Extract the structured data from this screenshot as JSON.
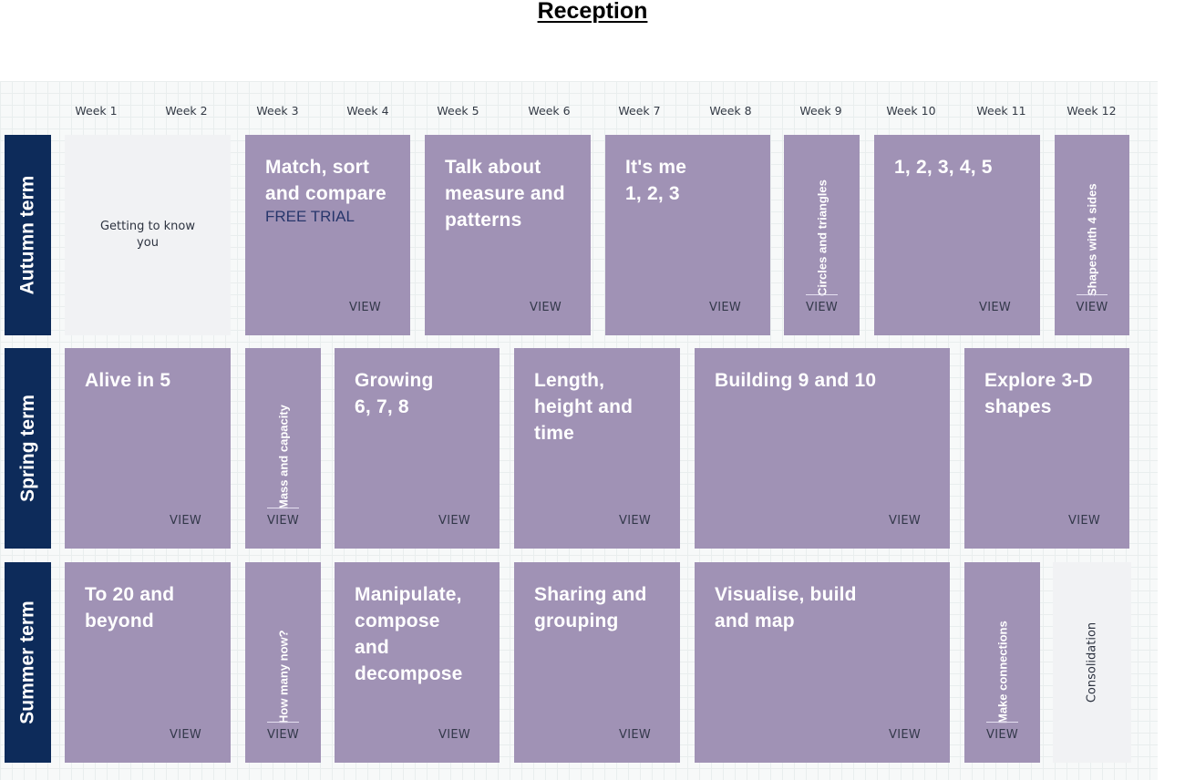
{
  "page_title": "Reception",
  "weeks": [
    "Week 1",
    "Week 2",
    "Week 3",
    "Week 4",
    "Week 5",
    "Week 6",
    "Week 7",
    "Week 8",
    "Week 9",
    "Week 10",
    "Week 11",
    "Week 12"
  ],
  "view_label": "VIEW",
  "autumn": {
    "term": "Autumn term",
    "getting_to_know": "Getting to know you",
    "match": "Match, sort and compare",
    "free_trial": "FREE TRIAL",
    "talk": "Talk about measure and patterns",
    "its_me": "It's me 1, 2, 3",
    "circles": "Circles and triangles",
    "one_to_five": "1, 2, 3, 4, 5",
    "shapes4": "Shapes with 4 sides"
  },
  "spring": {
    "term": "Spring term",
    "alive": "Alive in 5",
    "mass": "Mass and capacity",
    "growing": "Growing 6, 7, 8",
    "length": "Length, height and time",
    "building": "Building 9 and 10",
    "explore": "Explore 3-D shapes"
  },
  "summer": {
    "term": "Summer term",
    "to20": "To 20 and beyond",
    "howmany": "How many now?",
    "manipulate": "Manipulate, compose and decompose",
    "sharing": "Sharing and grouping",
    "visualise": "Visualise, build and map",
    "connections": "Make connections",
    "consolidation": "Consolidation"
  }
}
